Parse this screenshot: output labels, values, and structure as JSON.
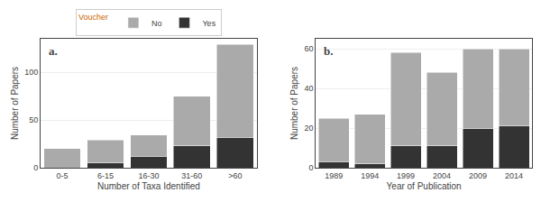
{
  "chart_data": [
    {
      "type": "bar",
      "stacked": true,
      "title": "a.",
      "categories": [
        "0-5",
        "6-15",
        "16-30",
        "31-60",
        ">60"
      ],
      "series": [
        {
          "name": "Yes",
          "color": "#333333",
          "values": [
            0,
            5,
            12,
            23,
            32
          ]
        },
        {
          "name": "No",
          "color": "#aaaaaa",
          "values": [
            20,
            24,
            22,
            52,
            97
          ]
        }
      ],
      "xlabel": "Number of Taxa Identified",
      "ylabel": "Number of Papers",
      "ylim": [
        0,
        135
      ],
      "yticks": [
        0,
        50,
        100
      ],
      "grid": true,
      "legend": "upper center",
      "legend_title": "Voucher"
    },
    {
      "type": "bar",
      "stacked": true,
      "title": "b.",
      "categories": [
        "1989",
        "1994",
        "1999",
        "2004",
        "2009",
        "2014"
      ],
      "series": [
        {
          "name": "Yes",
          "color": "#333333",
          "values": [
            3,
            2,
            11,
            11,
            20,
            21
          ]
        },
        {
          "name": "No",
          "color": "#aaaaaa",
          "values": [
            22,
            25,
            47,
            37,
            40,
            39
          ]
        }
      ],
      "xlabel": "Year of Publication",
      "ylabel": "Number of Papers",
      "ylim": [
        0,
        65
      ],
      "yticks": [
        0,
        20,
        40,
        60
      ],
      "grid": true
    }
  ]
}
